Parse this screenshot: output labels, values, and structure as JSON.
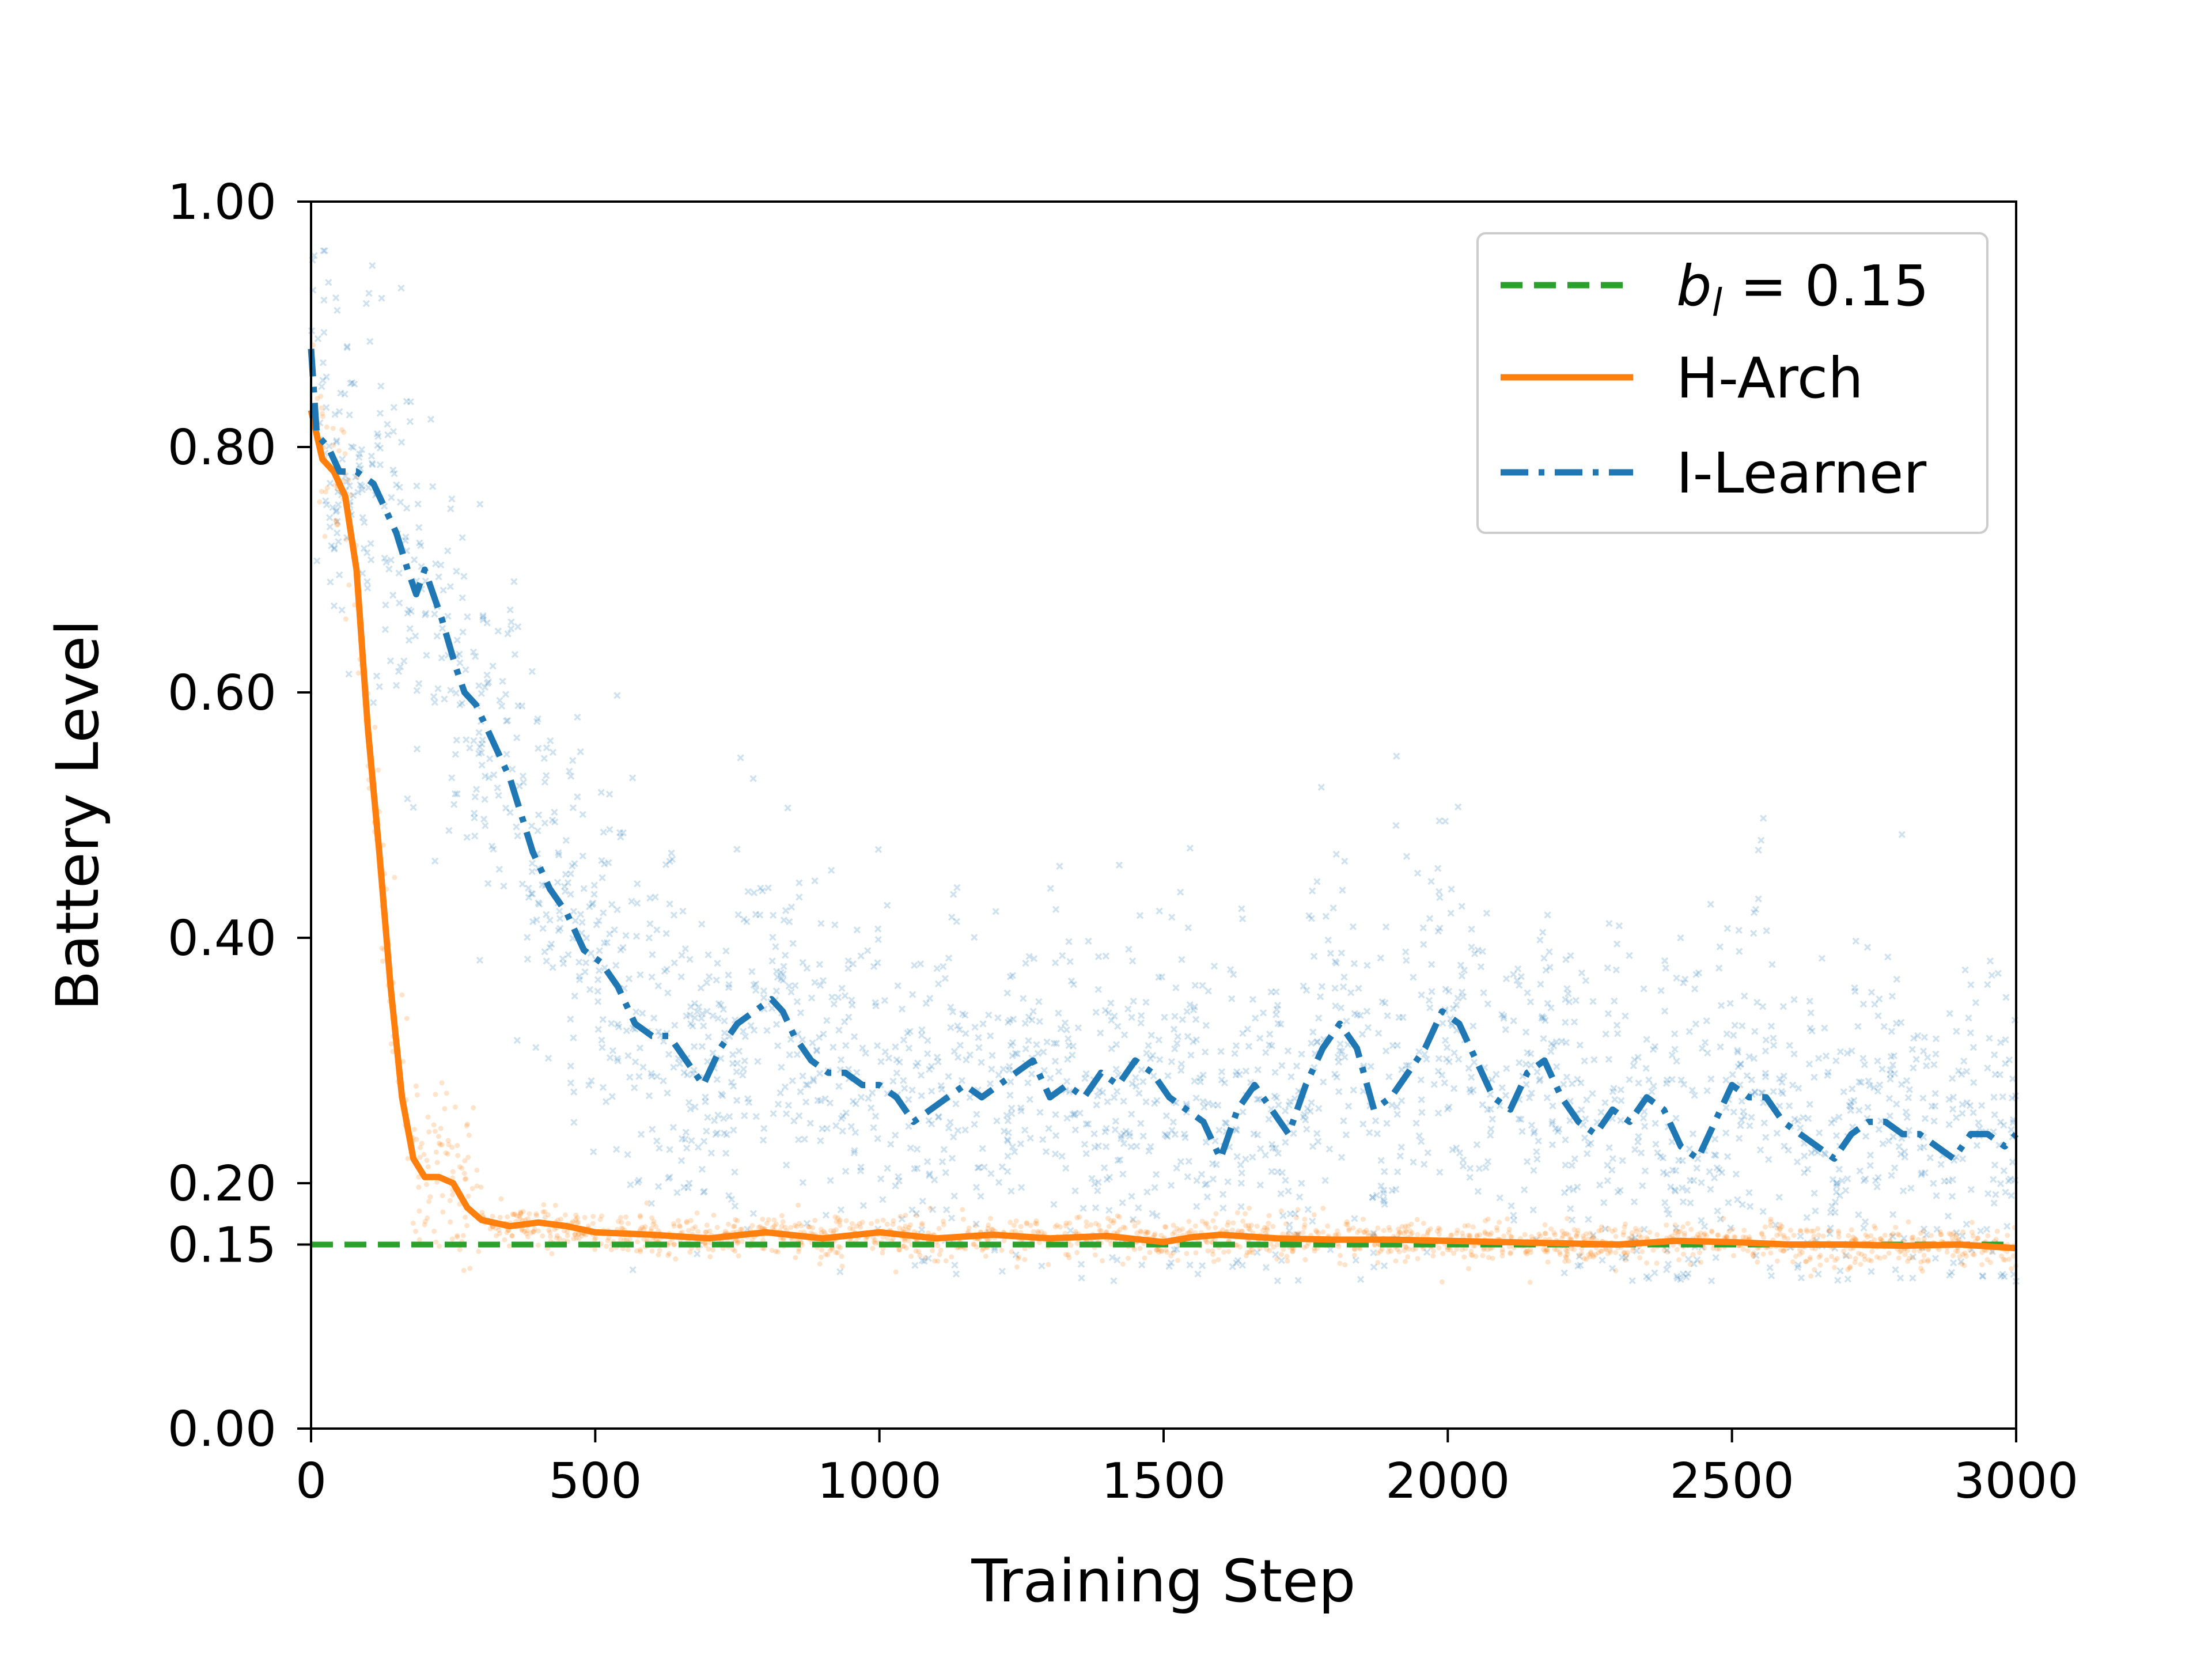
{
  "chart_data": {
    "type": "line",
    "xlabel": "Training Step",
    "ylabel": "Battery Level",
    "xlim": [
      0,
      3000
    ],
    "ylim": [
      0,
      1
    ],
    "xticks": [
      0,
      500,
      1000,
      1500,
      2000,
      2500,
      3000
    ],
    "yticks": [
      0.0,
      0.15,
      0.2,
      0.4,
      0.6,
      0.8,
      1.0
    ],
    "ytick_labels": [
      "0.00",
      "0.15",
      "0.20",
      "0.40",
      "0.60",
      "0.80",
      "1.00"
    ],
    "legend_position": "top-right",
    "threshold": {
      "name": "b_l = 0.15",
      "label_main": "b",
      "label_sub": "l",
      "label_rest": " = 0.15",
      "value": 0.15,
      "color": "#2ca02c",
      "style": "dashed"
    },
    "series": [
      {
        "name": "H-Arch",
        "color": "#ff7f0e",
        "style": "solid",
        "x": [
          0,
          20,
          40,
          60,
          80,
          100,
          120,
          140,
          160,
          180,
          200,
          225,
          250,
          275,
          300,
          350,
          400,
          450,
          500,
          600,
          700,
          800,
          900,
          1000,
          1100,
          1200,
          1300,
          1400,
          1500,
          1550,
          1600,
          1700,
          1800,
          1900,
          2000,
          2100,
          2200,
          2300,
          2400,
          2500,
          2600,
          2700,
          2800,
          2900,
          3000
        ],
        "values": [
          0.83,
          0.79,
          0.78,
          0.76,
          0.7,
          0.57,
          0.47,
          0.36,
          0.27,
          0.22,
          0.205,
          0.205,
          0.2,
          0.18,
          0.17,
          0.165,
          0.168,
          0.165,
          0.16,
          0.158,
          0.155,
          0.16,
          0.155,
          0.16,
          0.155,
          0.158,
          0.155,
          0.157,
          0.152,
          0.156,
          0.158,
          0.155,
          0.154,
          0.154,
          0.153,
          0.152,
          0.151,
          0.15,
          0.153,
          0.152,
          0.15,
          0.15,
          0.149,
          0.15,
          0.147
        ]
      },
      {
        "name": "I-Learner",
        "color": "#1f77b4",
        "style": "dashdot",
        "x": [
          0,
          10,
          30,
          50,
          80,
          110,
          130,
          150,
          170,
          185,
          200,
          215,
          230,
          255,
          270,
          290,
          310,
          330,
          350,
          370,
          390,
          420,
          450,
          480,
          510,
          540,
          570,
          600,
          630,
          660,
          690,
          720,
          750,
          780,
          810,
          830,
          850,
          880,
          910,
          940,
          970,
          1000,
          1030,
          1060,
          1090,
          1120,
          1150,
          1180,
          1210,
          1240,
          1270,
          1300,
          1330,
          1360,
          1390,
          1420,
          1450,
          1480,
          1510,
          1540,
          1570,
          1600,
          1630,
          1660,
          1690,
          1720,
          1750,
          1780,
          1810,
          1840,
          1870,
          1900,
          1930,
          1960,
          1990,
          2020,
          2050,
          2080,
          2110,
          2140,
          2170,
          2200,
          2230,
          2260,
          2290,
          2320,
          2350,
          2380,
          2410,
          2440,
          2470,
          2500,
          2530,
          2560,
          2590,
          2620,
          2650,
          2680,
          2710,
          2740,
          2770,
          2800,
          2830,
          2860,
          2890,
          2920,
          2950,
          2980,
          3000
        ],
        "values": [
          0.88,
          0.81,
          0.8,
          0.78,
          0.78,
          0.77,
          0.75,
          0.73,
          0.7,
          0.68,
          0.7,
          0.68,
          0.66,
          0.62,
          0.6,
          0.59,
          0.57,
          0.55,
          0.53,
          0.5,
          0.47,
          0.44,
          0.42,
          0.39,
          0.38,
          0.36,
          0.33,
          0.32,
          0.32,
          0.3,
          0.28,
          0.31,
          0.33,
          0.34,
          0.35,
          0.34,
          0.32,
          0.3,
          0.29,
          0.29,
          0.28,
          0.28,
          0.27,
          0.25,
          0.26,
          0.27,
          0.28,
          0.27,
          0.28,
          0.29,
          0.3,
          0.27,
          0.28,
          0.27,
          0.29,
          0.28,
          0.3,
          0.29,
          0.27,
          0.26,
          0.25,
          0.22,
          0.26,
          0.28,
          0.26,
          0.24,
          0.28,
          0.31,
          0.33,
          0.31,
          0.26,
          0.27,
          0.29,
          0.31,
          0.34,
          0.33,
          0.3,
          0.27,
          0.26,
          0.29,
          0.3,
          0.27,
          0.25,
          0.24,
          0.26,
          0.25,
          0.27,
          0.26,
          0.23,
          0.22,
          0.25,
          0.28,
          0.27,
          0.27,
          0.25,
          0.24,
          0.23,
          0.22,
          0.24,
          0.25,
          0.25,
          0.24,
          0.24,
          0.23,
          0.22,
          0.24,
          0.24,
          0.23,
          0.24
        ]
      }
    ]
  }
}
